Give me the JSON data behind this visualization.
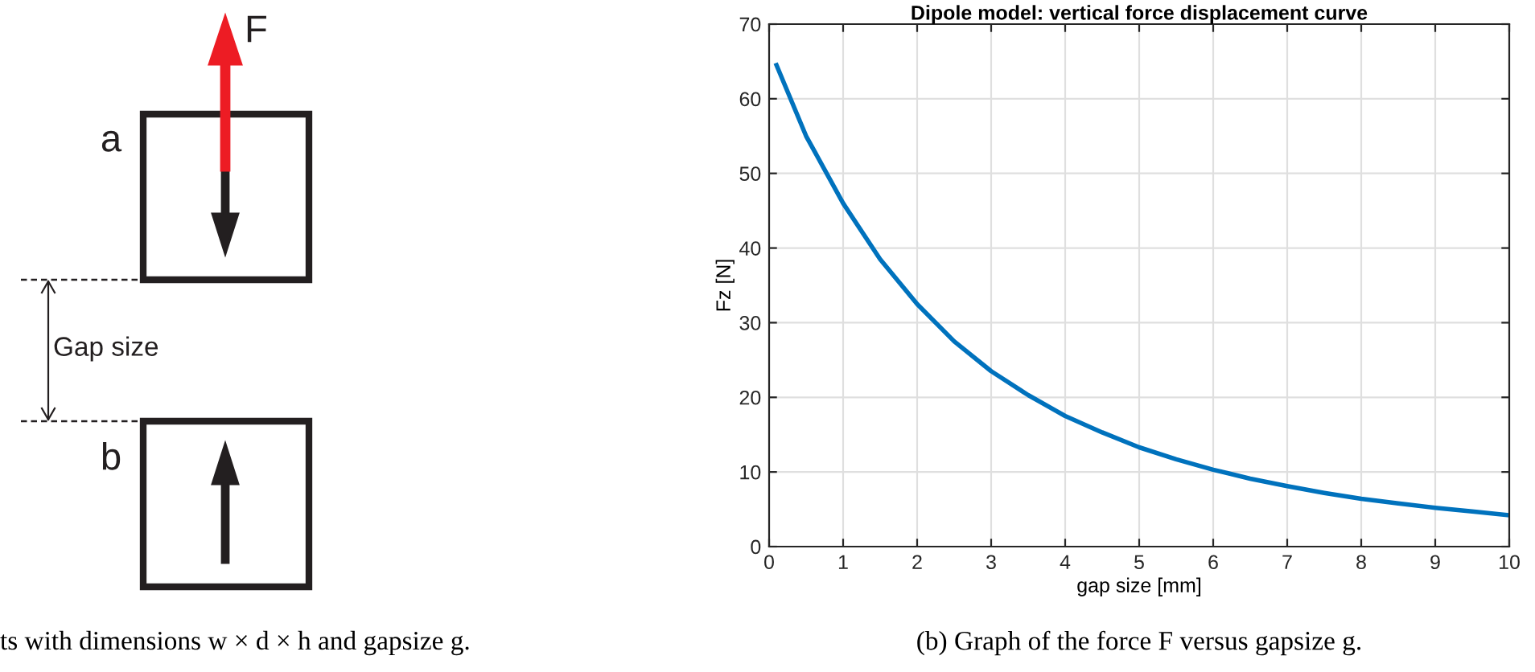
{
  "chart_data": {
    "type": "line",
    "title": "Dipole model: vertical force displacement curve",
    "xlabel": "gap size [mm]",
    "ylabel": "Fz [N]",
    "x": [
      0.1,
      0.5,
      1,
      1.5,
      2,
      2.5,
      3,
      3.5,
      4,
      4.5,
      5,
      5.5,
      6,
      6.5,
      7,
      7.5,
      8,
      8.5,
      9,
      9.5,
      10
    ],
    "series": [
      {
        "color": "#0072bd",
        "values": [
          64.5,
          55,
          46,
          38.5,
          32.5,
          27.5,
          23.5,
          20.3,
          17.5,
          15.3,
          13.3,
          11.7,
          10.3,
          9.1,
          8.1,
          7.2,
          6.4,
          5.8,
          5.2,
          4.7,
          4.2
        ]
      }
    ],
    "xlim": [
      0,
      10
    ],
    "ylim": [
      0,
      70
    ],
    "xticks": [
      0,
      1,
      2,
      3,
      4,
      5,
      6,
      7,
      8,
      9,
      10
    ],
    "yticks": [
      0,
      10,
      20,
      30,
      40,
      50,
      60,
      70
    ],
    "grid": true,
    "annotations": [
      "F",
      "a",
      "Gap size",
      "b",
      "ts with dimensions w × d × h and gapsize g.",
      "(b) Graph of the force F versus gapsize g."
    ]
  }
}
